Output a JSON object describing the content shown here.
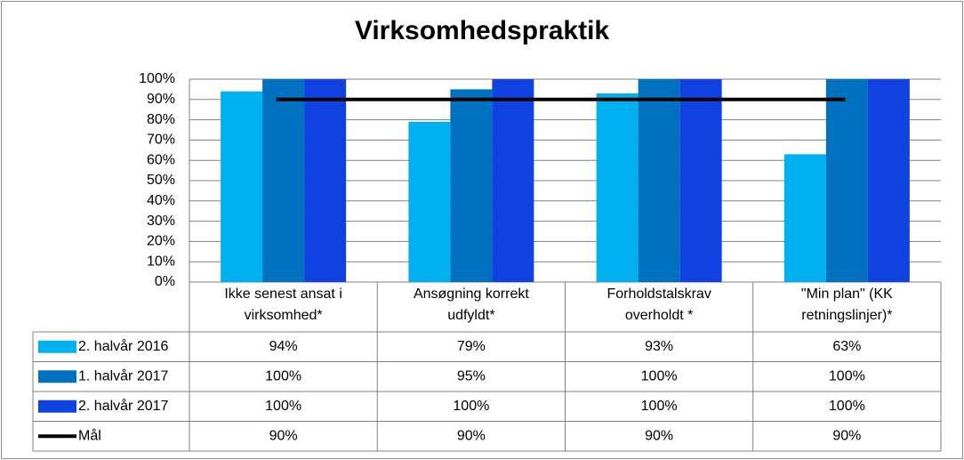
{
  "chart_data": {
    "type": "bar",
    "title": "Virksomhedspraktik",
    "categories": [
      [
        "Ikke senest ansat i",
        "virksomhed*"
      ],
      [
        "Ansøgning korrekt",
        "udfyldt*"
      ],
      [
        "Forholdstalskrav",
        "overholdt *"
      ],
      [
        "\"Min plan\" (KK",
        "retningslinjer)*"
      ]
    ],
    "series": [
      {
        "name": "2. halvår 2016",
        "values": [
          94,
          79,
          93,
          63
        ],
        "labels": [
          "94%",
          "79%",
          "93%",
          "63%"
        ],
        "color": "#00b0f0"
      },
      {
        "name": "1. halvår 2017",
        "values": [
          100,
          95,
          100,
          100
        ],
        "labels": [
          "100%",
          "95%",
          "100%",
          "100%"
        ],
        "color": "#0070c0"
      },
      {
        "name": "2. halvår 2017",
        "values": [
          100,
          100,
          100,
          100
        ],
        "labels": [
          "100%",
          "100%",
          "100%",
          "100%"
        ],
        "color": "#0f42e0"
      }
    ],
    "target": {
      "name": "Mål",
      "values": [
        90,
        90,
        90,
        90
      ],
      "labels": [
        "90%",
        "90%",
        "90%",
        "90%"
      ],
      "color": "#000000"
    },
    "y_ticks": [
      "0%",
      "10%",
      "20%",
      "30%",
      "40%",
      "50%",
      "60%",
      "70%",
      "80%",
      "90%",
      "100%"
    ],
    "ylim": [
      0,
      100
    ],
    "grid": true,
    "legend": "data-table"
  }
}
